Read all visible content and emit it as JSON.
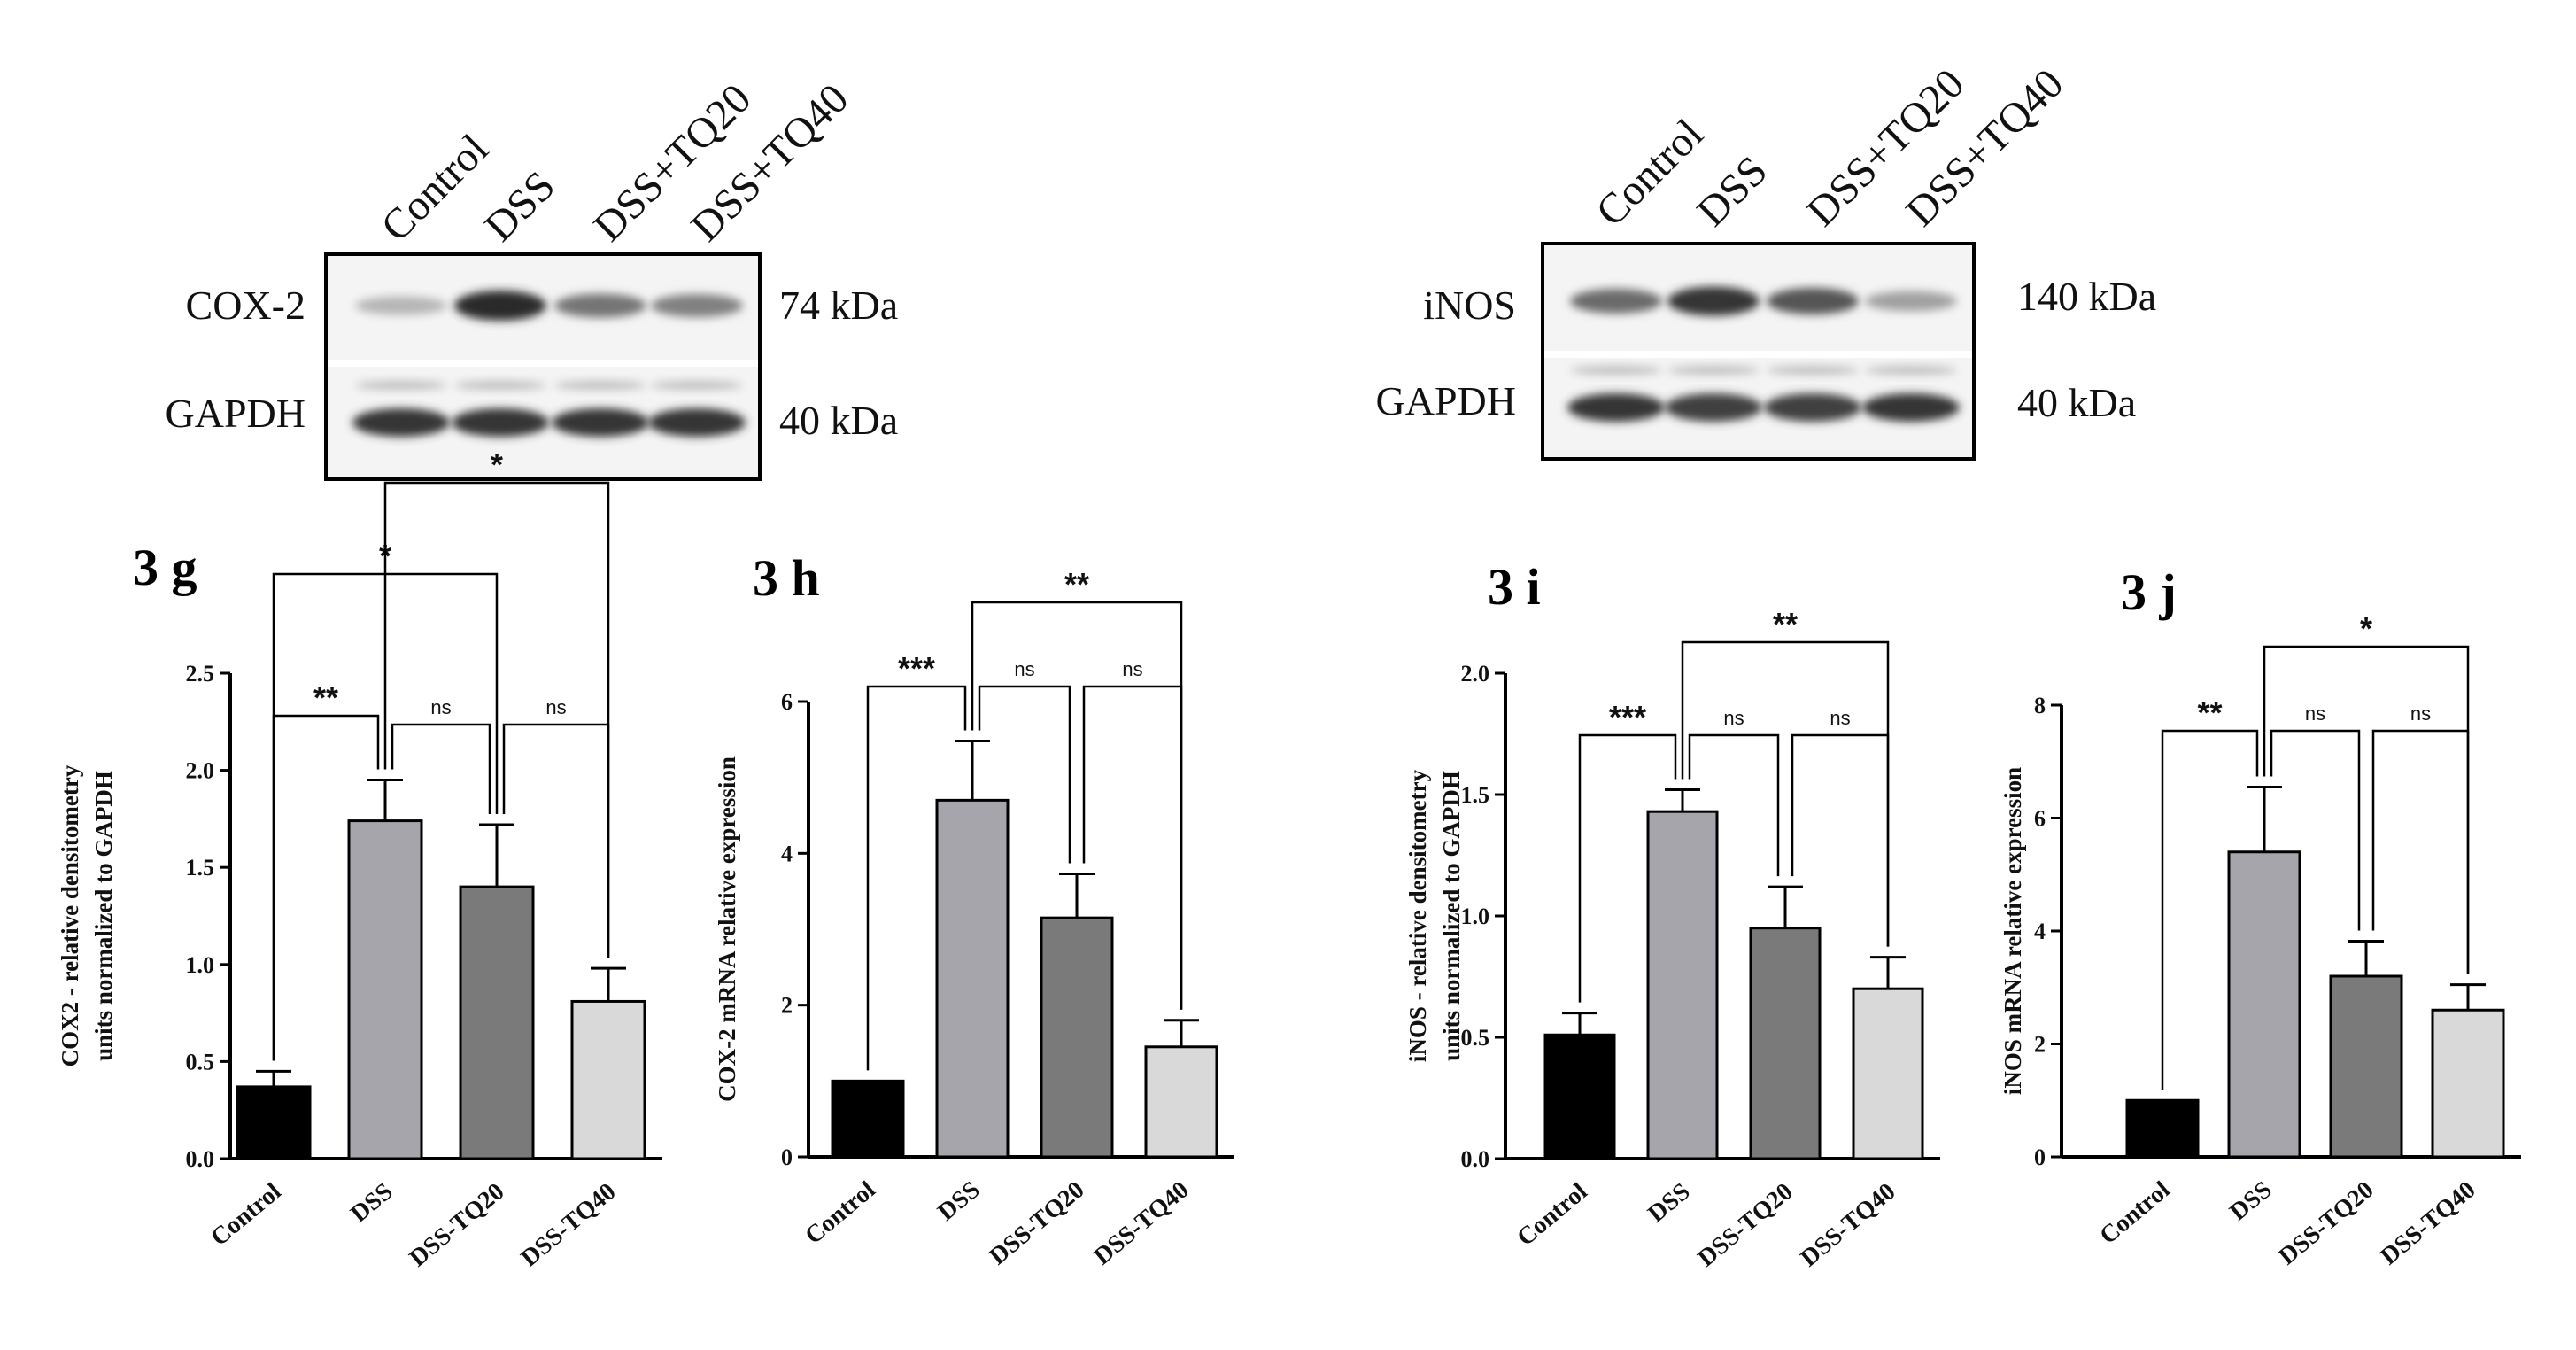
{
  "blots": [
    {
      "lanes": [
        "Control",
        "DSS",
        "DSS+TQ20",
        "DSS+TQ40"
      ],
      "target": "COX-2",
      "target_kda": "74 kDa",
      "loading": "GAPDH",
      "loading_kda": "40 kDa",
      "target_band_intensity": [
        0.25,
        0.9,
        0.55,
        0.5
      ],
      "loading_band_intensity": [
        0.85,
        0.85,
        0.85,
        0.85
      ]
    },
    {
      "lanes": [
        "Control",
        "DSS",
        "DSS+TQ20",
        "DSS+TQ40"
      ],
      "target": "iNOS",
      "target_kda": "140 kDa",
      "loading": "GAPDH",
      "loading_kda": "40 kDa",
      "target_band_intensity": [
        0.6,
        0.85,
        0.7,
        0.35
      ],
      "loading_band_intensity": [
        0.85,
        0.8,
        0.8,
        0.85
      ]
    }
  ],
  "chart_data": [
    {
      "type": "bar",
      "panel": "3 g",
      "categories": [
        "Control",
        "DSS",
        "DSS-TQ20",
        "DSS-TQ40"
      ],
      "values": [
        0.37,
        1.74,
        1.4,
        0.81
      ],
      "errors": [
        0.08,
        0.21,
        0.32,
        0.17
      ],
      "colors": [
        "#000000",
        "#a5a5ab",
        "#7a7a7a",
        "#d9d9d9"
      ],
      "ylabel": "COX2 - relative densitometry units normalized to GAPDH",
      "ylim": [
        0,
        2.5
      ],
      "yticks": [
        "0.0",
        "0.5",
        "1.0",
        "1.5",
        "2.0",
        "2.5"
      ],
      "significance": [
        {
          "from": 0,
          "to": 1,
          "label": "**"
        },
        {
          "from": 1,
          "to": 2,
          "label": "ns"
        },
        {
          "from": 2,
          "to": 3,
          "label": "ns"
        },
        {
          "from": 0,
          "to": 2,
          "label": "*"
        },
        {
          "from": 1,
          "to": 3,
          "label": "*"
        }
      ]
    },
    {
      "type": "bar",
      "panel": "3 h",
      "categories": [
        "Control",
        "DSS",
        "DSS-TQ20",
        "DSS-TQ40"
      ],
      "values": [
        1.0,
        4.7,
        3.15,
        1.45
      ],
      "errors": [
        0.0,
        0.78,
        0.58,
        0.35
      ],
      "colors": [
        "#000000",
        "#a5a5ab",
        "#7a7a7a",
        "#d9d9d9"
      ],
      "ylabel": "COX-2 mRNA relative expression",
      "ylim": [
        0,
        6
      ],
      "yticks": [
        "0",
        "2",
        "4",
        "6"
      ],
      "significance": [
        {
          "from": 0,
          "to": 1,
          "label": "***"
        },
        {
          "from": 1,
          "to": 2,
          "label": "ns"
        },
        {
          "from": 2,
          "to": 3,
          "label": "ns"
        },
        {
          "from": 1,
          "to": 3,
          "label": "**"
        }
      ]
    },
    {
      "type": "bar",
      "panel": "3 i",
      "categories": [
        "Control",
        "DSS",
        "DSS-TQ20",
        "DSS-TQ40"
      ],
      "values": [
        0.51,
        1.43,
        0.95,
        0.7
      ],
      "errors": [
        0.09,
        0.09,
        0.17,
        0.13
      ],
      "colors": [
        "#000000",
        "#a5a5ab",
        "#7a7a7a",
        "#d9d9d9"
      ],
      "ylabel": "iNOS - relative densitometry units normalized to GAPDH",
      "ylim": [
        0,
        2.0
      ],
      "yticks": [
        "0.0",
        "0.5",
        "1.0",
        "1.5",
        "2.0"
      ],
      "significance": [
        {
          "from": 0,
          "to": 1,
          "label": "***"
        },
        {
          "from": 1,
          "to": 2,
          "label": "ns"
        },
        {
          "from": 2,
          "to": 3,
          "label": "ns"
        },
        {
          "from": 1,
          "to": 3,
          "label": "**"
        }
      ]
    },
    {
      "type": "bar",
      "panel": "3 j",
      "categories": [
        "Control",
        "DSS",
        "DSS-TQ20",
        "DSS-TQ40"
      ],
      "values": [
        1.0,
        5.4,
        3.2,
        2.6
      ],
      "errors": [
        0.0,
        1.15,
        0.62,
        0.45
      ],
      "colors": [
        "#000000",
        "#a5a5ab",
        "#7a7a7a",
        "#d9d9d9"
      ],
      "ylabel": "iNOS mRNA relative expression",
      "ylim": [
        0,
        8
      ],
      "yticks": [
        "0",
        "2",
        "4",
        "6",
        "8"
      ],
      "significance": [
        {
          "from": 0,
          "to": 1,
          "label": "**"
        },
        {
          "from": 1,
          "to": 2,
          "label": "ns"
        },
        {
          "from": 2,
          "to": 3,
          "label": "ns"
        },
        {
          "from": 1,
          "to": 3,
          "label": "*"
        }
      ]
    }
  ]
}
